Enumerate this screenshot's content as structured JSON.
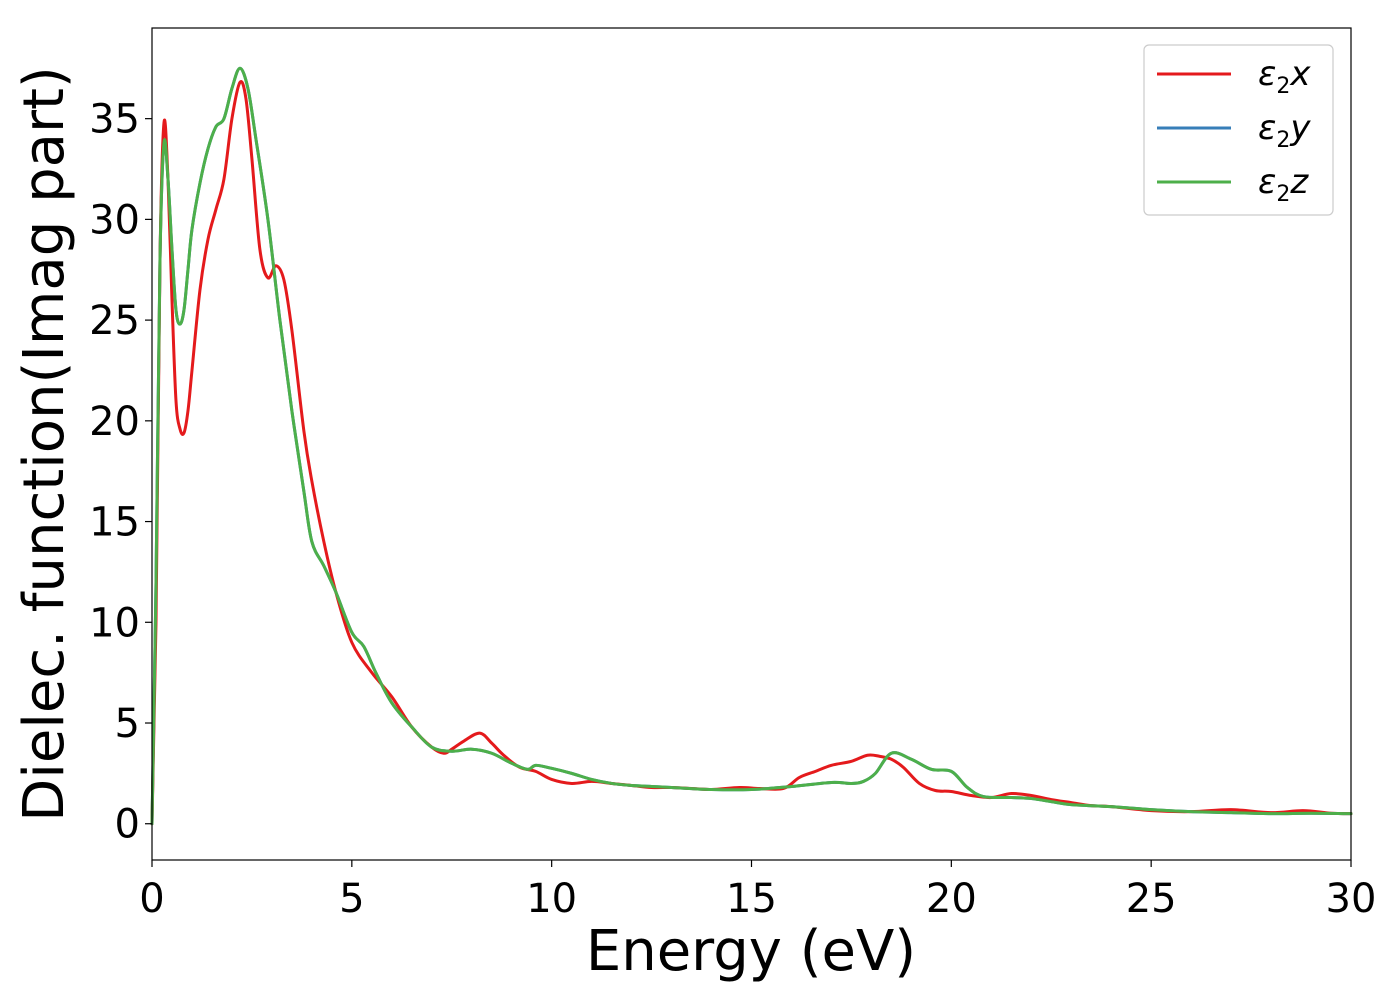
{
  "chart_data": {
    "type": "line",
    "xlabel": "Energy (eV)",
    "ylabel": "Dielec. function(Imag part)",
    "xlim": [
      0,
      30
    ],
    "ylim": [
      -1.8,
      39.5
    ],
    "xticks": [
      "0",
      "5",
      "10",
      "15",
      "20",
      "25",
      "30"
    ],
    "yticks": [
      "0",
      "5",
      "10",
      "15",
      "20",
      "25",
      "30",
      "35"
    ],
    "grid": false,
    "legend_position": "top-right",
    "series": [
      {
        "name": "ε2x",
        "legend": {
          "symbol": "ε",
          "sub": "2",
          "suffix": "x"
        },
        "color": "#e41a1c",
        "points": [
          [
            0,
            0
          ],
          [
            0.1,
            10
          ],
          [
            0.2,
            28
          ],
          [
            0.3,
            34.8
          ],
          [
            0.4,
            32
          ],
          [
            0.5,
            26
          ],
          [
            0.6,
            21
          ],
          [
            0.7,
            19.6
          ],
          [
            0.8,
            19.4
          ],
          [
            0.9,
            20.5
          ],
          [
            1.0,
            22.5
          ],
          [
            1.2,
            26.5
          ],
          [
            1.4,
            29
          ],
          [
            1.6,
            30.5
          ],
          [
            1.8,
            32
          ],
          [
            2.0,
            35
          ],
          [
            2.2,
            36.8
          ],
          [
            2.35,
            36
          ],
          [
            2.5,
            33
          ],
          [
            2.7,
            28.5
          ],
          [
            2.9,
            27.1
          ],
          [
            3.1,
            27.7
          ],
          [
            3.3,
            27
          ],
          [
            3.5,
            24.5
          ],
          [
            3.8,
            19.5
          ],
          [
            4.0,
            17
          ],
          [
            4.3,
            14
          ],
          [
            4.6,
            11.5
          ],
          [
            5.0,
            9
          ],
          [
            5.5,
            7.5
          ],
          [
            6.0,
            6.3
          ],
          [
            6.5,
            4.8
          ],
          [
            7.0,
            3.8
          ],
          [
            7.3,
            3.5
          ],
          [
            7.5,
            3.7
          ],
          [
            7.8,
            4.1
          ],
          [
            8.2,
            4.5
          ],
          [
            8.5,
            4
          ],
          [
            8.8,
            3.4
          ],
          [
            9.2,
            2.8
          ],
          [
            9.6,
            2.6
          ],
          [
            10.0,
            2.2
          ],
          [
            10.5,
            2.0
          ],
          [
            11.0,
            2.1
          ],
          [
            11.5,
            2.0
          ],
          [
            12.0,
            1.9
          ],
          [
            12.5,
            1.8
          ],
          [
            13.0,
            1.8
          ],
          [
            13.5,
            1.75
          ],
          [
            14.0,
            1.7
          ],
          [
            14.7,
            1.8
          ],
          [
            15.2,
            1.75
          ],
          [
            15.8,
            1.75
          ],
          [
            16.2,
            2.3
          ],
          [
            16.6,
            2.6
          ],
          [
            17.0,
            2.9
          ],
          [
            17.5,
            3.1
          ],
          [
            17.9,
            3.4
          ],
          [
            18.2,
            3.35
          ],
          [
            18.5,
            3.2
          ],
          [
            18.8,
            2.8
          ],
          [
            19.2,
            2.0
          ],
          [
            19.6,
            1.65
          ],
          [
            20.0,
            1.6
          ],
          [
            20.5,
            1.4
          ],
          [
            21.0,
            1.3
          ],
          [
            21.5,
            1.5
          ],
          [
            22.0,
            1.4
          ],
          [
            22.5,
            1.2
          ],
          [
            23.0,
            1.05
          ],
          [
            23.5,
            0.9
          ],
          [
            24.0,
            0.85
          ],
          [
            25.0,
            0.65
          ],
          [
            26.0,
            0.6
          ],
          [
            27.0,
            0.7
          ],
          [
            28.0,
            0.55
          ],
          [
            28.8,
            0.65
          ],
          [
            29.5,
            0.52
          ],
          [
            30.0,
            0.5
          ]
        ]
      },
      {
        "name": "ε2y",
        "legend": {
          "symbol": "ε",
          "sub": "2",
          "suffix": "y"
        },
        "color": "#377eb8",
        "points": [
          [
            0,
            0
          ],
          [
            0.1,
            12
          ],
          [
            0.2,
            28
          ],
          [
            0.3,
            33.8
          ],
          [
            0.4,
            32
          ],
          [
            0.5,
            28.5
          ],
          [
            0.6,
            25.5
          ],
          [
            0.7,
            24.8
          ],
          [
            0.8,
            25.5
          ],
          [
            0.9,
            27.5
          ],
          [
            1.0,
            29.5
          ],
          [
            1.2,
            31.8
          ],
          [
            1.4,
            33.5
          ],
          [
            1.6,
            34.6
          ],
          [
            1.8,
            35
          ],
          [
            2.0,
            36.5
          ],
          [
            2.2,
            37.5
          ],
          [
            2.4,
            36.5
          ],
          [
            2.6,
            34
          ],
          [
            2.9,
            30
          ],
          [
            3.2,
            25
          ],
          [
            3.5,
            20.5
          ],
          [
            3.8,
            16.5
          ],
          [
            4.0,
            14
          ],
          [
            4.3,
            12.8
          ],
          [
            4.6,
            11.5
          ],
          [
            5.0,
            9.5
          ],
          [
            5.3,
            8.8
          ],
          [
            5.6,
            7.5
          ],
          [
            6.0,
            6
          ],
          [
            6.5,
            4.8
          ],
          [
            7.0,
            3.8
          ],
          [
            7.5,
            3.6
          ],
          [
            8.0,
            3.7
          ],
          [
            8.5,
            3.5
          ],
          [
            9.0,
            3.0
          ],
          [
            9.4,
            2.7
          ],
          [
            9.6,
            2.9
          ],
          [
            10.0,
            2.75
          ],
          [
            10.5,
            2.5
          ],
          [
            11.0,
            2.2
          ],
          [
            11.5,
            2.0
          ],
          [
            12.0,
            1.9
          ],
          [
            12.5,
            1.85
          ],
          [
            13.0,
            1.8
          ],
          [
            14.0,
            1.7
          ],
          [
            15.0,
            1.7
          ],
          [
            16.0,
            1.85
          ],
          [
            17.0,
            2.05
          ],
          [
            17.5,
            2.0
          ],
          [
            17.8,
            2.1
          ],
          [
            18.1,
            2.5
          ],
          [
            18.5,
            3.5
          ],
          [
            19.0,
            3.2
          ],
          [
            19.5,
            2.7
          ],
          [
            20.0,
            2.6
          ],
          [
            20.4,
            1.8
          ],
          [
            20.8,
            1.35
          ],
          [
            21.5,
            1.3
          ],
          [
            22.0,
            1.25
          ],
          [
            22.5,
            1.1
          ],
          [
            23.0,
            0.95
          ],
          [
            24.0,
            0.85
          ],
          [
            25.0,
            0.7
          ],
          [
            26.0,
            0.6
          ],
          [
            27.0,
            0.55
          ],
          [
            28.0,
            0.5
          ],
          [
            29.0,
            0.52
          ],
          [
            30.0,
            0.5
          ]
        ]
      },
      {
        "name": "ε2z",
        "legend": {
          "symbol": "ε",
          "sub": "2",
          "suffix": "z"
        },
        "color": "#4daf4a",
        "points": [
          [
            0,
            0
          ],
          [
            0.1,
            12
          ],
          [
            0.2,
            28
          ],
          [
            0.3,
            33.8
          ],
          [
            0.4,
            32
          ],
          [
            0.5,
            28.5
          ],
          [
            0.6,
            25.5
          ],
          [
            0.7,
            24.8
          ],
          [
            0.8,
            25.5
          ],
          [
            0.9,
            27.5
          ],
          [
            1.0,
            29.5
          ],
          [
            1.2,
            31.8
          ],
          [
            1.4,
            33.5
          ],
          [
            1.6,
            34.6
          ],
          [
            1.8,
            35
          ],
          [
            2.0,
            36.5
          ],
          [
            2.2,
            37.5
          ],
          [
            2.4,
            36.5
          ],
          [
            2.6,
            34
          ],
          [
            2.9,
            30
          ],
          [
            3.2,
            25
          ],
          [
            3.5,
            20.5
          ],
          [
            3.8,
            16.5
          ],
          [
            4.0,
            14
          ],
          [
            4.3,
            12.8
          ],
          [
            4.6,
            11.5
          ],
          [
            5.0,
            9.5
          ],
          [
            5.3,
            8.8
          ],
          [
            5.6,
            7.5
          ],
          [
            6.0,
            6
          ],
          [
            6.5,
            4.8
          ],
          [
            7.0,
            3.8
          ],
          [
            7.5,
            3.6
          ],
          [
            8.0,
            3.7
          ],
          [
            8.5,
            3.5
          ],
          [
            9.0,
            3.0
          ],
          [
            9.4,
            2.7
          ],
          [
            9.6,
            2.9
          ],
          [
            10.0,
            2.75
          ],
          [
            10.5,
            2.5
          ],
          [
            11.0,
            2.2
          ],
          [
            11.5,
            2.0
          ],
          [
            12.0,
            1.9
          ],
          [
            12.5,
            1.85
          ],
          [
            13.0,
            1.8
          ],
          [
            14.0,
            1.7
          ],
          [
            15.0,
            1.7
          ],
          [
            16.0,
            1.85
          ],
          [
            17.0,
            2.05
          ],
          [
            17.5,
            2.0
          ],
          [
            17.8,
            2.1
          ],
          [
            18.1,
            2.5
          ],
          [
            18.5,
            3.5
          ],
          [
            19.0,
            3.2
          ],
          [
            19.5,
            2.7
          ],
          [
            20.0,
            2.6
          ],
          [
            20.4,
            1.8
          ],
          [
            20.8,
            1.35
          ],
          [
            21.5,
            1.3
          ],
          [
            22.0,
            1.25
          ],
          [
            22.5,
            1.1
          ],
          [
            23.0,
            0.95
          ],
          [
            24.0,
            0.85
          ],
          [
            25.0,
            0.7
          ],
          [
            26.0,
            0.6
          ],
          [
            27.0,
            0.55
          ],
          [
            28.0,
            0.5
          ],
          [
            29.0,
            0.52
          ],
          [
            30.0,
            0.5
          ]
        ]
      }
    ]
  }
}
